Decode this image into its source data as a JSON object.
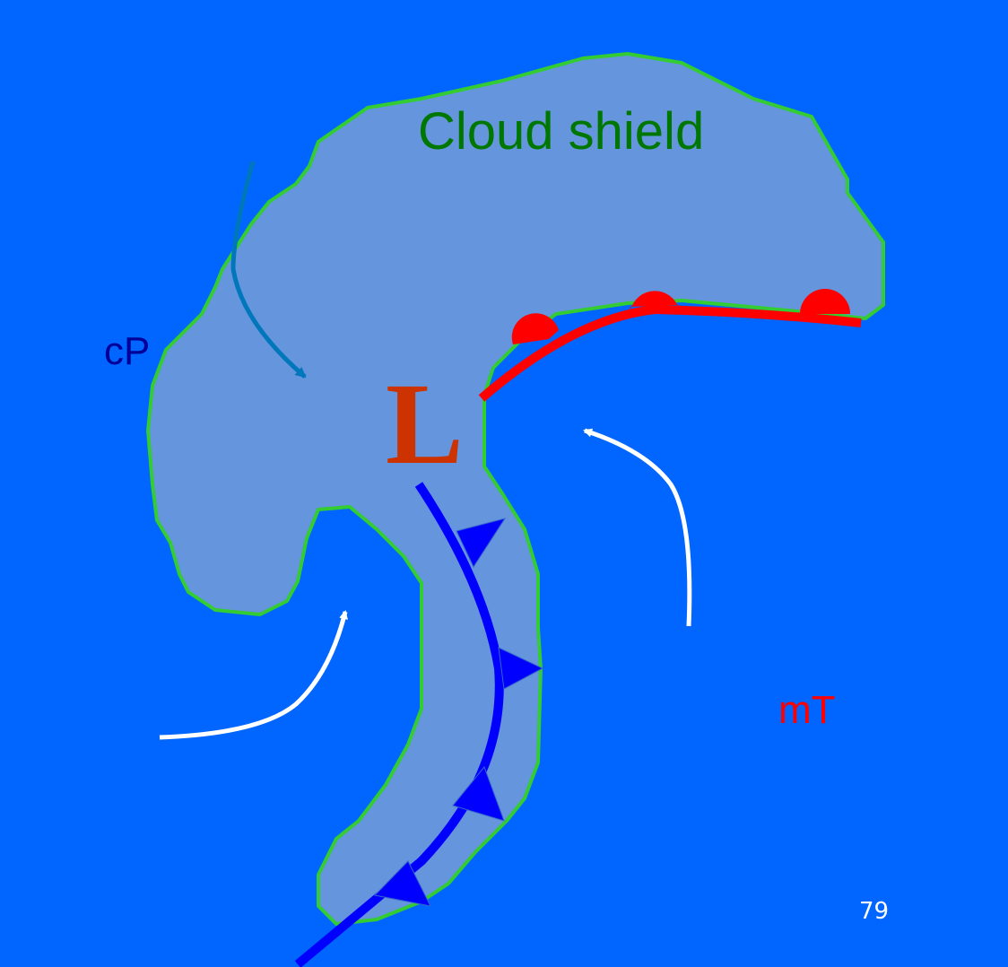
{
  "labels": {
    "cloud_shield": "Cloud shield",
    "continental_polar": "cP",
    "maritime_tropical": "mT",
    "low_pressure": "L",
    "page_number": "79"
  },
  "colors": {
    "background": "#0066ff",
    "cloud_fill": "#6495dd",
    "cloud_outline": "#33cc33",
    "cloud_label": "#007700",
    "cp_label": "#000099",
    "mt_label": "#ff0000",
    "low_label": "#cc3300",
    "warm_front": "#ff0000",
    "cold_front": "#0000ff",
    "cp_arrow": "#0077bb",
    "flow_arrow": "#ffffff",
    "page_number": "#ffffff"
  }
}
